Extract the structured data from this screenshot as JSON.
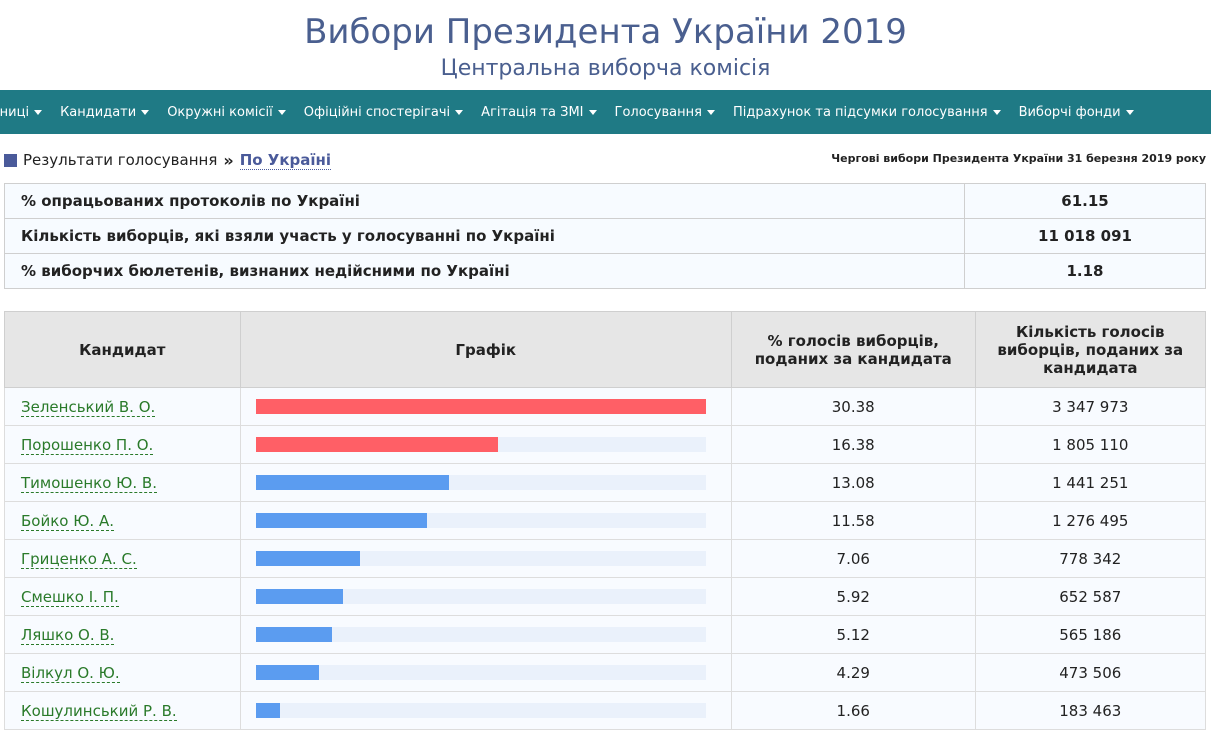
{
  "header": {
    "title": "Вибори Президента України 2019",
    "subtitle": "Центральна виборча комісія"
  },
  "nav": {
    "items": [
      "ьниці",
      "Кандидати",
      "Окружні комісії",
      "Офіційні спостерігачі",
      "Агітація та ЗМІ",
      "Голосування",
      "Підрахунок та підсумки голосування",
      "Виборчі фонди"
    ]
  },
  "breadcrumb": {
    "section": "Результати голосування",
    "separator": "»",
    "current": "По Україні"
  },
  "election_date": "Чергові вибори Президента України 31 березня 2019 року",
  "summary": [
    {
      "label": "% опрацьованих протоколів по Україні",
      "value": "61.15"
    },
    {
      "label": "Кількість виборців, які взяли участь у голосуванні по Україні",
      "value": "11 018 091"
    },
    {
      "label": "% виборчих бюлетенів, визнаних недійсними по Україні",
      "value": "1.18"
    }
  ],
  "table": {
    "headers": {
      "candidate": "Кандидат",
      "graph": "Графік",
      "percent": "% голосів виборців, поданих за кандидата",
      "votes": "Кількість голосів виборців, поданих за кандидата"
    },
    "rows": [
      {
        "name": "Зеленський В. О.",
        "percent": "30.38",
        "votes": "3 347 973",
        "share": 1.0,
        "color": "#ff5f66"
      },
      {
        "name": "Порошенко П. О.",
        "percent": "16.38",
        "votes": "1 805 110",
        "share": 0.539,
        "color": "#ff5f66"
      },
      {
        "name": "Тимошенко Ю. В.",
        "percent": "13.08",
        "votes": "1 441 251",
        "share": 0.431,
        "color": "#5b9cf0"
      },
      {
        "name": "Бойко Ю. А.",
        "percent": "11.58",
        "votes": "1 276 495",
        "share": 0.381,
        "color": "#5b9cf0"
      },
      {
        "name": "Гриценко А. С.",
        "percent": "7.06",
        "votes": "778 342",
        "share": 0.232,
        "color": "#5b9cf0"
      },
      {
        "name": "Смешко І. П.",
        "percent": "5.92",
        "votes": "652 587",
        "share": 0.195,
        "color": "#5b9cf0"
      },
      {
        "name": "Ляшко О. В.",
        "percent": "5.12",
        "votes": "565 186",
        "share": 0.169,
        "color": "#5b9cf0"
      },
      {
        "name": "Вілкул О. Ю.",
        "percent": "4.29",
        "votes": "473 506",
        "share": 0.141,
        "color": "#5b9cf0"
      },
      {
        "name": "Кошулинський Р. В.",
        "percent": "1.66",
        "votes": "183 463",
        "share": 0.055,
        "color": "#5b9cf0"
      }
    ]
  }
}
